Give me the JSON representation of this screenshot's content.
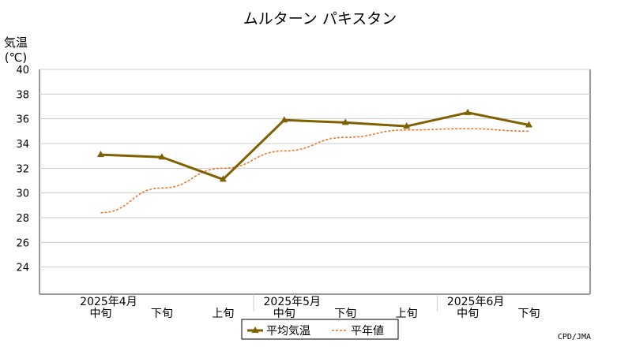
{
  "chart_data": {
    "type": "line",
    "title": "ムルターン パキスタン",
    "ylabel_line1": "気温",
    "ylabel_line2": "(℃)",
    "ylim": [
      22,
      40
    ],
    "y_ticks": [
      24,
      26,
      28,
      30,
      32,
      34,
      36,
      38,
      40
    ],
    "x": [
      "2025年4月 中旬",
      "2025年4月 下旬",
      "2025年5月 上旬",
      "2025年5月 中旬",
      "2025年5月 下旬",
      "2025年6月 上旬",
      "2025年6月 中旬",
      "2025年6月 下旬"
    ],
    "x_decade_labels": [
      "中旬",
      "下旬",
      "上旬",
      "中旬",
      "下旬",
      "上旬",
      "中旬",
      "下旬"
    ],
    "x_month_labels": [
      {
        "label": "2025年4月",
        "index": 0
      },
      {
        "label": "2025年5月",
        "index": 3
      },
      {
        "label": "2025年6月",
        "index": 6
      }
    ],
    "series": [
      {
        "name": "平均気温",
        "color": "#806000",
        "style": "solid",
        "marker": "triangle",
        "values": [
          33.1,
          32.9,
          31.1,
          35.9,
          35.7,
          35.4,
          36.5,
          35.5
        ]
      },
      {
        "name": "平年値",
        "color": "#f07020",
        "style": "dashed",
        "marker": "none",
        "values": [
          28.4,
          30.4,
          32.0,
          33.4,
          34.5,
          35.1,
          35.2,
          35.0
        ]
      }
    ],
    "grid": true,
    "legend": "bottom-center"
  },
  "credit": "CPD/JMA"
}
